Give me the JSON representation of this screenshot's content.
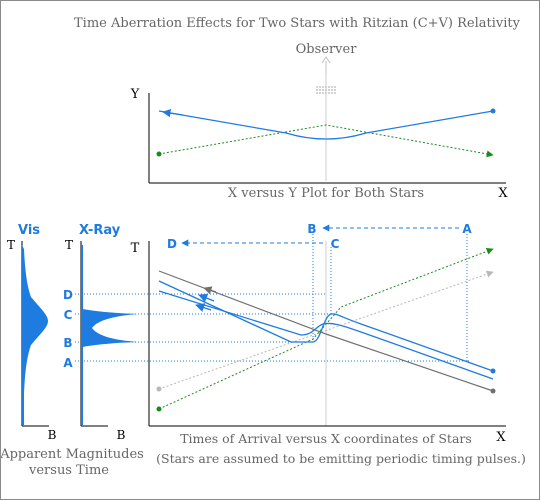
{
  "title": "Time Aberration Effects for Two Stars with Ritzian (C+V) Relativity",
  "observer_label": "Observer",
  "top_plot": {
    "y_axis": "Y",
    "x_axis": "X",
    "caption": "X versus Y Plot for Both Stars"
  },
  "magnitude_plots": {
    "vis_title": "Vis",
    "xray_title": "X-Ray",
    "t_label": "T",
    "b_label": "B",
    "caption_line1": "Apparent Magnitudes",
    "caption_line2": "versus Time"
  },
  "main_plot": {
    "t_axis": "T",
    "x_axis": "X",
    "caption_line1": "Times of Arrival versus X coordinates of Stars",
    "caption_line2": "(Stars are assumed to be emitting periodic timing pulses.)"
  },
  "event_labels": {
    "a": "A",
    "b": "B",
    "c": "C",
    "d": "D"
  },
  "colors": {
    "blue": "#1e7be0",
    "green": "#1a8a1a",
    "gray_dark": "#707070",
    "gray_light": "#b8b8b8",
    "text_gray": "#666666"
  }
}
